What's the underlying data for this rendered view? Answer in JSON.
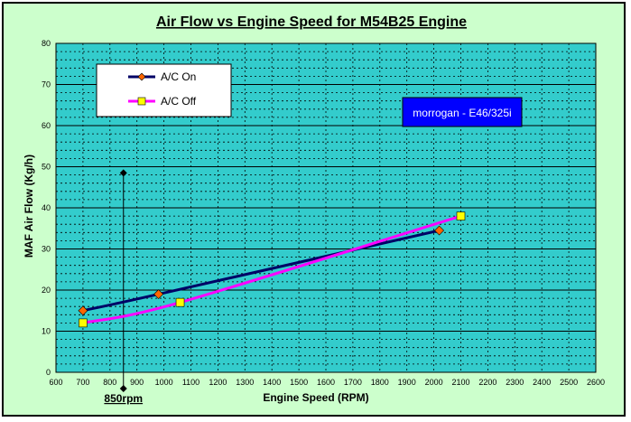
{
  "chart_data": {
    "type": "line",
    "title": "Air Flow vs Engine Speed for M54B25 Engine",
    "xlabel": "Engine Speed (RPM)",
    "ylabel": "MAF Air Flow (Kg/h)",
    "xlim": [
      600,
      2600
    ],
    "ylim": [
      0,
      80
    ],
    "x_major_step": 100,
    "y_major_step": 10,
    "y_minor_step": 2,
    "grid": true,
    "legend": "top-left",
    "series": [
      {
        "name": "A/C On",
        "color": "#000066",
        "marker": "diamond",
        "marker_color": "#ff6600",
        "x": [
          700,
          980,
          2020
        ],
        "y": [
          15,
          19,
          34.5
        ]
      },
      {
        "name": "A/C Off",
        "color": "#ff00ff",
        "marker": "square",
        "marker_color": "#ffff00",
        "x": [
          700,
          1060,
          2100
        ],
        "y": [
          12,
          17,
          38
        ]
      }
    ],
    "annotations": {
      "idle_marker": {
        "label": "850rpm",
        "x": 850,
        "y_from": 0,
        "y_to": 48.5
      },
      "watermark": {
        "label": "morrogan - E46/325i",
        "bg_color": "#0000ff",
        "text_color": "#ffffff"
      }
    },
    "colors": {
      "plot_bg": "#33cccc",
      "chart_bg": "#ccffcc",
      "grid": "#000000"
    }
  }
}
